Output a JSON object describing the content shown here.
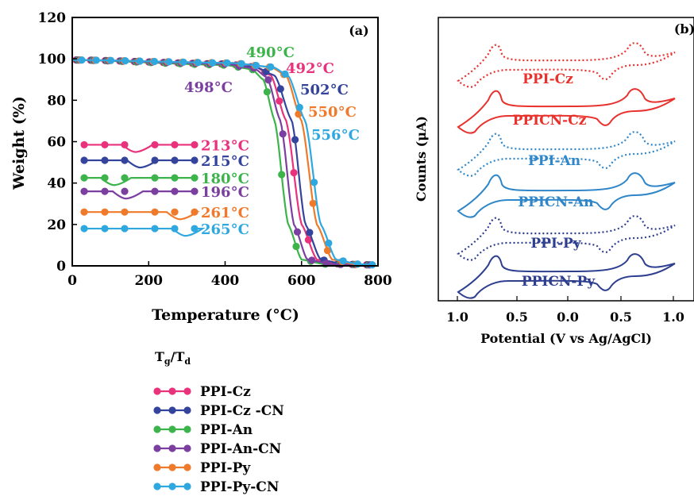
{
  "chart_data": [
    {
      "type": "line",
      "panel_label": "(a)",
      "xlabel": "Temperature (°C)",
      "ylabel": "Weight (%)",
      "xlim": [
        0,
        800
      ],
      "ylim": [
        0,
        120
      ],
      "xticks": [
        "0",
        "200",
        "400",
        "600",
        "800"
      ],
      "yticks": [
        "0",
        "20",
        "40",
        "60",
        "80",
        "100",
        "120"
      ],
      "series": [
        {
          "name": "PPI-Cz",
          "color": "#e8327c",
          "td": 492,
          "td_label": "492°C",
          "points": [
            [
              0,
              99.5
            ],
            [
              400,
              97.5
            ],
            [
              480,
              96
            ],
            [
              520,
              92
            ],
            [
              560,
              70
            ],
            [
              600,
              20
            ],
            [
              640,
              3
            ],
            [
              700,
              0.8
            ],
            [
              780,
              0.5
            ]
          ]
        },
        {
          "name": "PPI-Cz -CN",
          "color": "#34449c",
          "td": 502,
          "td_label": "502°C",
          "points": [
            [
              0,
              99.5
            ],
            [
              400,
              97.5
            ],
            [
              480,
              96
            ],
            [
              530,
              92
            ],
            [
              575,
              70
            ],
            [
              610,
              20
            ],
            [
              650,
              3
            ],
            [
              710,
              0.8
            ],
            [
              780,
              0.5
            ]
          ]
        },
        {
          "name": "PPI-An",
          "color": "#3cb44b",
          "td": 490,
          "td_label": "490°C",
          "points": [
            [
              0,
              99.5
            ],
            [
              400,
              97
            ],
            [
              470,
              95
            ],
            [
              500,
              90
            ],
            [
              530,
              70
            ],
            [
              565,
              20
            ],
            [
              600,
              3
            ],
            [
              660,
              0.8
            ],
            [
              780,
              0.5
            ]
          ]
        },
        {
          "name": "PPI-An-CN",
          "color": "#7b3fa0",
          "td": 498,
          "td_label": "498°C",
          "points": [
            [
              0,
              99.5
            ],
            [
              400,
              97.5
            ],
            [
              475,
              95.5
            ],
            [
              510,
              91
            ],
            [
              545,
              70
            ],
            [
              580,
              20
            ],
            [
              615,
              3
            ],
            [
              680,
              0.8
            ],
            [
              780,
              0.5
            ]
          ]
        },
        {
          "name": "PPI-Py",
          "color": "#f07a2b",
          "td": 550,
          "td_label": "550°C",
          "points": [
            [
              0,
              99.5
            ],
            [
              420,
              98
            ],
            [
              520,
              96
            ],
            [
              560,
              92
            ],
            [
              600,
              70
            ],
            [
              640,
              20
            ],
            [
              680,
              3
            ],
            [
              740,
              0.8
            ],
            [
              780,
              0.5
            ]
          ]
        },
        {
          "name": "PPI-Py-CN",
          "color": "#2fa8e0",
          "td": 556,
          "td_label": "556°C",
          "points": [
            [
              0,
              99.5
            ],
            [
              420,
              98
            ],
            [
              525,
              96
            ],
            [
              565,
              92
            ],
            [
              610,
              70
            ],
            [
              650,
              20
            ],
            [
              690,
              3
            ],
            [
              750,
              0.8
            ],
            [
              790,
              0.5
            ]
          ]
        }
      ],
      "tg_traces": [
        {
          "series": "PPI-Cz",
          "tg_label": "213°C",
          "level": 58.5
        },
        {
          "series": "PPI-Cz -CN",
          "tg_label": "215°C",
          "level": 51
        },
        {
          "series": "PPI-An",
          "tg_label": "180°C",
          "level": 42.5
        },
        {
          "series": "PPI-An-CN",
          "tg_label": "196°C",
          "level": 36
        },
        {
          "series": "PPI-Py",
          "tg_label": "261°C",
          "level": 26
        },
        {
          "series": "PPI-Py-CN",
          "tg_label": "265°C",
          "level": 18
        }
      ],
      "legend_title_main": "T",
      "legend_title_sub1": "g",
      "legend_title_sep": "/T",
      "legend_title_sub2": "d",
      "legend_placement": "below"
    },
    {
      "type": "line",
      "panel_label": "(b)",
      "xlabel": "Potential (V vs Ag/AgCl)",
      "ylabel": "Counts (μA)",
      "xticks": [
        "1.0",
        "0.5",
        "0.0",
        "0.5",
        "1.0"
      ],
      "series": [
        {
          "name": "PPI-Cz",
          "color": "#e8322e",
          "dotted": true
        },
        {
          "name": "PPICN-Cz",
          "color": "#e8322e",
          "dotted": false
        },
        {
          "name": "PPI-An",
          "color": "#2f86c8",
          "dotted": true
        },
        {
          "name": "PPICN-An",
          "color": "#2f86c8",
          "dotted": false
        },
        {
          "name": "PPI-Py",
          "color": "#2e3f8f",
          "dotted": true
        },
        {
          "name": "PPICN-Py",
          "color": "#2e3f8f",
          "dotted": false
        }
      ]
    }
  ]
}
